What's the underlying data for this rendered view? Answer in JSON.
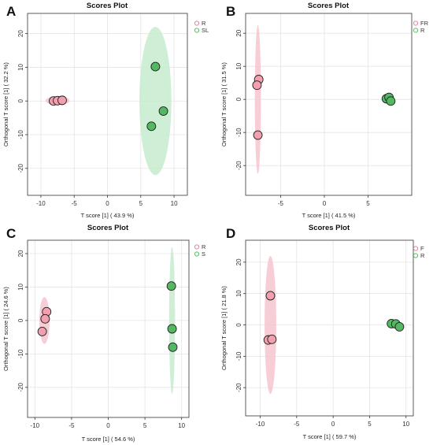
{
  "figure": {
    "panels": [
      "A",
      "B",
      "C",
      "D"
    ]
  },
  "chart_data": [
    {
      "panel_label": "A",
      "type": "scatter",
      "title": "Scores Plot",
      "xlabel": "T score [1] ( 43.9 %)",
      "ylabel": "Orthogonal T score [1] ( 32.2 %)",
      "xlim": [
        -12,
        12
      ],
      "ylim": [
        -28,
        26
      ],
      "xticks": [
        -10,
        -5,
        0,
        5,
        10
      ],
      "yticks": [
        -20,
        -10,
        0,
        10,
        20
      ],
      "grid": true,
      "legend_position": "top-right",
      "series": [
        {
          "name": "R",
          "color": "#e8849a",
          "fill": "#f2a0b0",
          "points": [
            [
              -8.1,
              0.0
            ],
            [
              -7.5,
              0.1
            ],
            [
              -6.8,
              0.2
            ]
          ],
          "ellipse": {
            "cx": -7.5,
            "cy": 0.1,
            "rx": 1.8,
            "ry": 1.3,
            "color": "#f7c5cf"
          }
        },
        {
          "name": "SL",
          "color": "#5cbf6b",
          "fill": "#52b862",
          "points": [
            [
              7.2,
              10.2
            ],
            [
              8.4,
              -3.0
            ],
            [
              6.6,
              -7.5
            ]
          ],
          "ellipse": {
            "cx": 7.2,
            "cy": 0.0,
            "rx": 2.4,
            "ry": 22.0,
            "color": "#c6ecce"
          }
        }
      ]
    },
    {
      "panel_label": "B",
      "type": "scatter",
      "title": "Scores Plot",
      "xlabel": "T score [1] ( 41.5 %)",
      "ylabel": "Orthogonal T score [1] ( 31.5 %)",
      "xlim": [
        -9,
        10
      ],
      "ylim": [
        -29,
        26
      ],
      "xticks": [
        -5,
        0,
        5
      ],
      "yticks": [
        -20,
        -10,
        0,
        10,
        20
      ],
      "grid": true,
      "legend_position": "top-right",
      "series": [
        {
          "name": "FR",
          "color": "#e8849a",
          "fill": "#f2a0b0",
          "points": [
            [
              -7.5,
              6.0
            ],
            [
              -7.7,
              4.3
            ],
            [
              -7.6,
              -10.8
            ]
          ],
          "ellipse": {
            "cx": -7.6,
            "cy": 0.0,
            "rx": 0.35,
            "ry": 22.5,
            "color": "#f7c5cf"
          }
        },
        {
          "name": "R",
          "color": "#5cbf6b",
          "fill": "#52b862",
          "points": [
            [
              7.1,
              0.2
            ],
            [
              7.4,
              0.6
            ],
            [
              7.6,
              -0.5
            ]
          ],
          "ellipse": {
            "cx": 7.4,
            "cy": 0.1,
            "rx": 0.6,
            "ry": 1.2,
            "color": "#c6ecce"
          }
        }
      ]
    },
    {
      "panel_label": "C",
      "type": "scatter",
      "title": "Scores Plot",
      "xlabel": "T score [1] ( 54.6 %)",
      "ylabel": "Orthogonal T score [1] ( 24.6 %)",
      "xlim": [
        -11,
        11
      ],
      "ylim": [
        -29,
        24
      ],
      "xticks": [
        -10,
        -5,
        0,
        5,
        10
      ],
      "yticks": [
        -20,
        -10,
        0,
        10,
        20
      ],
      "grid": true,
      "legend_position": "top-right",
      "series": [
        {
          "name": "R",
          "color": "#e8849a",
          "fill": "#f2a0b0",
          "points": [
            [
              -8.4,
              2.6
            ],
            [
              -8.6,
              0.5
            ],
            [
              -9.0,
              -3.3
            ]
          ],
          "ellipse": {
            "cx": -8.7,
            "cy": 0.0,
            "rx": 0.7,
            "ry": 7.0,
            "color": "#f7c5cf"
          }
        },
        {
          "name": "S",
          "color": "#5cbf6b",
          "fill": "#52b862",
          "points": [
            [
              8.6,
              10.3
            ],
            [
              8.7,
              -2.5
            ],
            [
              8.8,
              -8.0
            ]
          ],
          "ellipse": {
            "cx": 8.7,
            "cy": 0.0,
            "rx": 0.4,
            "ry": 22.0,
            "color": "#c6ecce"
          }
        }
      ]
    },
    {
      "panel_label": "D",
      "type": "scatter",
      "title": "Scores Plot",
      "xlabel": "T score [1] ( 59.7 %)",
      "ylabel": "Orthogonal T score [1] ( 21.8 %)",
      "xlim": [
        -12,
        11
      ],
      "ylim": [
        -29,
        27
      ],
      "xticks": [
        -10,
        -5,
        0,
        5,
        10
      ],
      "yticks": [
        -20,
        -10,
        0,
        10,
        20
      ],
      "grid": true,
      "legend_position": "top-right",
      "series": [
        {
          "name": "F",
          "color": "#e8849a",
          "fill": "#f2a0b0",
          "points": [
            [
              -8.6,
              9.3
            ],
            [
              -8.9,
              -4.8
            ],
            [
              -8.4,
              -4.6
            ]
          ],
          "ellipse": {
            "cx": -8.6,
            "cy": 0.0,
            "rx": 0.8,
            "ry": 22.0,
            "color": "#f7c5cf"
          }
        },
        {
          "name": "R",
          "color": "#5cbf6b",
          "fill": "#52b862",
          "points": [
            [
              8.0,
              0.4
            ],
            [
              8.6,
              0.3
            ],
            [
              9.1,
              -0.6
            ]
          ],
          "ellipse": {
            "cx": 8.6,
            "cy": 0.0,
            "rx": 0.9,
            "ry": 1.2,
            "color": "#c6ecce"
          }
        }
      ]
    }
  ]
}
